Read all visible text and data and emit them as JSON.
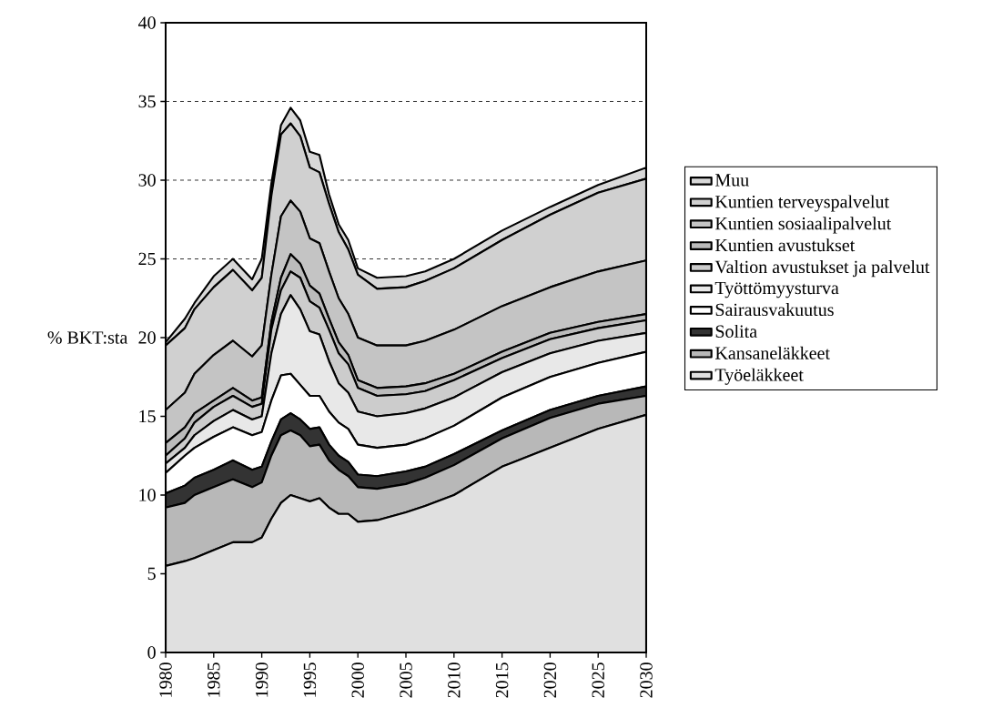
{
  "chart_data": {
    "type": "area",
    "stacked": true,
    "ylabel": "% BKT:sta",
    "x": [
      1980,
      1982,
      1983,
      1985,
      1987,
      1989,
      1990,
      1991,
      1992,
      1993,
      1994,
      1995,
      1996,
      1997,
      1998,
      1999,
      2000,
      2002,
      2005,
      2007,
      2010,
      2015,
      2020,
      2025,
      2030
    ],
    "xlim": [
      1980,
      2030
    ],
    "xticks": [
      1980,
      1985,
      1990,
      1995,
      2000,
      2005,
      2010,
      2015,
      2020,
      2025,
      2030
    ],
    "ylim": [
      0,
      40
    ],
    "yticks": [
      0,
      5,
      10,
      15,
      20,
      25,
      30,
      35,
      40
    ],
    "grid": "y",
    "legend": "right",
    "series": [
      {
        "name": "Työeläkkeet",
        "color": "#e0e0e0",
        "values": [
          5.5,
          5.8,
          6.0,
          6.5,
          7.0,
          7.0,
          7.3,
          8.5,
          9.5,
          10.0,
          9.8,
          9.6,
          9.8,
          9.2,
          8.8,
          8.8,
          8.3,
          8.4,
          8.9,
          9.3,
          10.0,
          11.8,
          13.0,
          14.2,
          15.1
        ]
      },
      {
        "name": "Kansaneläkkeet",
        "color": "#b8b8b8",
        "values": [
          3.7,
          3.7,
          4.0,
          4.0,
          4.0,
          3.5,
          3.5,
          4.0,
          4.3,
          4.1,
          4.0,
          3.5,
          3.4,
          3.0,
          2.8,
          2.4,
          2.2,
          2.0,
          1.8,
          1.8,
          1.9,
          1.8,
          1.9,
          1.6,
          1.2
        ]
      },
      {
        "name": "Solita",
        "color": "#333333",
        "values": [
          0.9,
          1.1,
          1.1,
          1.1,
          1.2,
          1.1,
          1.0,
          0.9,
          1.0,
          1.1,
          1.0,
          1.1,
          1.1,
          1.0,
          0.9,
          0.9,
          0.8,
          0.8,
          0.8,
          0.7,
          0.7,
          0.5,
          0.5,
          0.5,
          0.6
        ]
      },
      {
        "name": "Sairausvakuutus",
        "color": "#ffffff",
        "values": [
          1.3,
          1.9,
          1.9,
          2.1,
          2.1,
          2.2,
          2.2,
          2.6,
          2.8,
          2.5,
          2.2,
          2.1,
          2.0,
          2.1,
          2.1,
          2.1,
          1.9,
          1.8,
          1.7,
          1.8,
          1.8,
          2.1,
          2.1,
          2.1,
          2.2
        ]
      },
      {
        "name": "Työttömyysturva",
        "color": "#e8e8e8",
        "values": [
          0.6,
          0.5,
          0.8,
          1.0,
          1.1,
          1.0,
          1.0,
          3.0,
          3.9,
          5.0,
          4.8,
          4.1,
          3.9,
          3.2,
          2.5,
          2.3,
          2.1,
          2.0,
          2.0,
          1.9,
          1.8,
          1.6,
          1.5,
          1.4,
          1.2
        ]
      },
      {
        "name": "Valtion avustukset ja palvelut",
        "color": "#cccccc",
        "values": [
          0.5,
          0.6,
          0.8,
          0.9,
          0.9,
          0.8,
          0.8,
          1.5,
          1.5,
          1.5,
          2.0,
          1.9,
          1.7,
          2.0,
          1.9,
          1.8,
          1.5,
          1.3,
          1.2,
          1.1,
          1.1,
          0.9,
          0.9,
          0.8,
          0.8
        ]
      },
      {
        "name": "Kuntien avustukset",
        "color": "#bbbbbb",
        "values": [
          0.8,
          0.7,
          0.6,
          0.4,
          0.5,
          0.4,
          0.4,
          0.5,
          0.8,
          1.1,
          0.9,
          1.0,
          0.9,
          0.7,
          0.7,
          0.6,
          0.5,
          0.5,
          0.5,
          0.5,
          0.4,
          0.4,
          0.4,
          0.4,
          0.4
        ]
      },
      {
        "name": "Kuntien sosiaalipalvelut",
        "color": "#c4c4c4",
        "values": [
          2.1,
          2.2,
          2.5,
          2.9,
          3.0,
          2.8,
          3.3,
          3.0,
          3.9,
          3.4,
          3.3,
          3.0,
          3.2,
          3.0,
          2.8,
          2.6,
          2.7,
          2.7,
          2.6,
          2.7,
          2.8,
          2.9,
          2.9,
          3.2,
          3.4
        ]
      },
      {
        "name": "Kuntien terveyspalvelut",
        "color": "#d0d0d0",
        "values": [
          4.1,
          4.1,
          4.1,
          4.3,
          4.5,
          4.2,
          4.3,
          5.0,
          5.2,
          4.9,
          4.8,
          4.5,
          4.5,
          4.3,
          4.2,
          4.1,
          4.0,
          3.6,
          3.7,
          3.8,
          3.9,
          4.2,
          4.6,
          5.0,
          5.2
        ]
      },
      {
        "name": "Muu",
        "color": "#d8d8d8",
        "values": [
          0.2,
          0.6,
          0.4,
          0.7,
          0.7,
          0.7,
          1.2,
          0.8,
          0.6,
          1.0,
          1.0,
          1.0,
          1.1,
          0.6,
          0.5,
          0.6,
          0.4,
          0.7,
          0.7,
          0.6,
          0.6,
          0.6,
          0.5,
          0.5,
          0.7
        ]
      }
    ]
  }
}
